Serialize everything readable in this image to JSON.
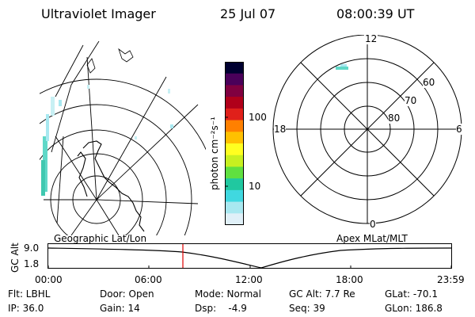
{
  "header": {
    "instrument": "Ultraviolet Imager",
    "date": "25 Jul 07",
    "time": "08:00:39 UT"
  },
  "geo_panel": {
    "label": "Geographic Lat/Lon"
  },
  "polar_panel": {
    "label": "Apex MLat/MLT",
    "mlt_labels": {
      "top": "12",
      "left": "18",
      "right": "6",
      "bottom": "0"
    },
    "lat_labels": [
      "60",
      "70",
      "80"
    ]
  },
  "colorbar": {
    "unit_label": "photon cm⁻²s⁻¹",
    "ticks": [
      "100",
      "10"
    ],
    "colors": [
      "#000030",
      "#4a005a",
      "#800040",
      "#b0001a",
      "#e0201a",
      "#ff8000",
      "#ffc000",
      "#ffff20",
      "#c8f020",
      "#60e040",
      "#20c8a0",
      "#40d8e0",
      "#a8e8f0",
      "#e0f0f8"
    ]
  },
  "altitude_plot": {
    "ylabel": "GC Alt",
    "yticks": [
      "9.0",
      "1.8"
    ],
    "xticks": [
      "00:00",
      "06:00",
      "12:00",
      "18:00",
      "23:59"
    ],
    "marker_time": "08:00:39",
    "marker_color": "#e00000"
  },
  "info": {
    "flt": "Flt: LBHL",
    "ip": "IP: 36.0",
    "door": "Door: Open",
    "gain": "Gain: 14",
    "mode": "Mode: Normal",
    "dsp": "Dsp:    -4.9",
    "gcalt": "GC Alt: 7.7 Re",
    "seq": "Seq: 39",
    "glat": "GLat: -70.1",
    "glon": "GLon: 186.8"
  }
}
